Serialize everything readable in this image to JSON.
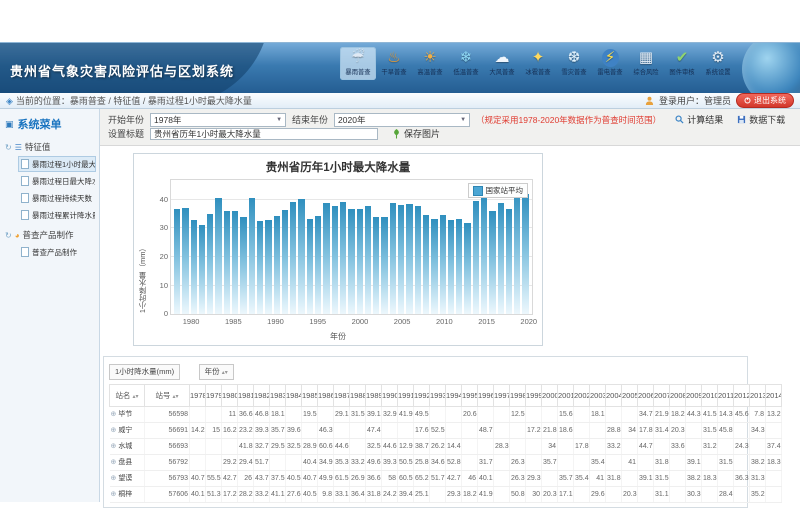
{
  "app": {
    "title": "贵州省气象灾害风险评估与区划系统"
  },
  "toolbar": {
    "items": [
      {
        "name": "rainstorm",
        "icon": "rainstorm-icon",
        "label": "暴雨普查",
        "active": true
      },
      {
        "name": "drought",
        "icon": "drought-icon",
        "label": "干旱普查",
        "active": false
      },
      {
        "name": "high-temp",
        "icon": "high-temp-icon",
        "label": "高温普查",
        "active": false
      },
      {
        "name": "low-temp",
        "icon": "low-temp-icon",
        "label": "低温普查",
        "active": false
      },
      {
        "name": "wind",
        "icon": "wind-icon",
        "label": "大风普查",
        "active": false
      },
      {
        "name": "hail",
        "icon": "hail-icon",
        "label": "冰雹普查",
        "active": false
      },
      {
        "name": "snow",
        "icon": "snow-icon",
        "label": "雪灾普查",
        "active": false
      },
      {
        "name": "lightning",
        "icon": "lightning-icon",
        "label": "雷电普查",
        "active": false
      },
      {
        "name": "composite-risk",
        "icon": "composite-risk-icon",
        "label": "综合风险",
        "active": false
      },
      {
        "name": "map-review",
        "icon": "map-review-icon",
        "label": "图件审核",
        "active": false
      },
      {
        "name": "settings",
        "icon": "settings-icon",
        "label": "系统设置",
        "active": false
      }
    ]
  },
  "userbar": {
    "location": "当前的位置：暴雨普查 / 特征值 / 暴雨过程1小时最大降水量",
    "login": "登录用户：管理员",
    "logout": "退出系统"
  },
  "sidebar": {
    "title": "系统菜单",
    "sections": [
      {
        "label": "特征值",
        "icon": "list-icon",
        "items": [
          {
            "label": "暴雨过程1小时最大降水量",
            "active": true
          },
          {
            "label": "暴雨过程日最大降水量",
            "active": false
          },
          {
            "label": "暴雨过程持续天数",
            "active": false
          },
          {
            "label": "暴雨过程累计降水量",
            "active": false
          }
        ]
      },
      {
        "label": "普查产品制作",
        "icon": "product-icon",
        "items": [
          {
            "label": "普查产品制作",
            "active": false
          }
        ]
      }
    ]
  },
  "filters": {
    "start_label": "开始年份",
    "start_value": "1978年",
    "end_label": "结束年份",
    "end_value": "2020年",
    "note": "（规定采用1978-2020年数据作为普查时间范围）",
    "calc_label": "计算结果",
    "download_label": "数据下载",
    "title_label": "设置标题",
    "title_value": "贵州省历年1小时最大降水量",
    "save_label": "保存图片"
  },
  "chart_data": {
    "type": "bar",
    "title": "贵州省历年1小时最大降水量",
    "legend": [
      "国家站平均"
    ],
    "xlabel": "年份",
    "ylabel": "1小时降水量（mm）",
    "x": [
      1978,
      1979,
      1980,
      1981,
      1982,
      1983,
      1984,
      1985,
      1986,
      1987,
      1988,
      1989,
      1990,
      1991,
      1992,
      1993,
      1994,
      1995,
      1996,
      1997,
      1998,
      1999,
      2000,
      2001,
      2002,
      2003,
      2004,
      2005,
      2006,
      2007,
      2008,
      2009,
      2010,
      2011,
      2012,
      2013,
      2014,
      2015,
      2016,
      2017,
      2018,
      2019,
      2020
    ],
    "values": [
      36.7,
      37.3,
      32.9,
      31.2,
      35.2,
      40.7,
      36.2,
      36.2,
      34.1,
      40.8,
      32.8,
      33,
      34.5,
      36.5,
      39.2,
      40.5,
      33.5,
      34.5,
      38.9,
      37.8,
      39.4,
      36.7,
      36.8,
      37.8,
      33.9,
      33.9,
      38.8,
      38.1,
      38.5,
      38,
      34.6,
      33.5,
      34.9,
      33,
      33.3,
      32,
      39.7,
      41.2,
      36,
      39,
      36.7,
      43,
      42.2
    ],
    "ylim": [
      0,
      47
    ],
    "yticks": [
      0,
      10,
      20,
      30,
      40
    ],
    "xticks": [
      1980,
      1985,
      1990,
      1995,
      2000,
      2005,
      2010,
      2015,
      2020
    ],
    "bar_color": "#3b97c6",
    "grid": true,
    "legend_position": "top-right"
  },
  "table": {
    "measure_pill": "1小时降水量(mm)",
    "dim_pill": "年份",
    "col_station": "站名",
    "col_id": "站号",
    "years": [
      "1978",
      "1979",
      "1980",
      "1981",
      "1982",
      "1983",
      "1984",
      "1985",
      "1986",
      "1987",
      "1988",
      "1989",
      "1990",
      "1991",
      "1992",
      "1993",
      "1994",
      "1995",
      "1996",
      "1997",
      "1998",
      "1999",
      "2000",
      "2001",
      "2002",
      "2003",
      "2004",
      "2005",
      "2006",
      "2007",
      "2008",
      "2009",
      "2010",
      "2011",
      "2012",
      "2013",
      "2014"
    ],
    "rows": [
      {
        "name": "毕节",
        "id": "56598",
        "values": [
          "",
          "",
          "11",
          "36.6",
          "46.8",
          "18.1",
          "",
          "19.5",
          "",
          "29.1",
          "31.5",
          "39.1",
          "32.9",
          "41.9",
          "49.5",
          "",
          "",
          "20.6",
          "",
          "",
          "12.5",
          "",
          "",
          "15.6",
          "",
          "18.1",
          "",
          "",
          "34.7",
          "21.9",
          "18.2",
          "44.3",
          "41.5",
          "14.3",
          "45.6",
          "7.8",
          "13.2"
        ]
      },
      {
        "name": "威宁",
        "id": "56691",
        "values": [
          "14.2",
          "15",
          "16.2",
          "23.2",
          "39.3",
          "35.7",
          "39.6",
          "",
          "46.3",
          "",
          "",
          "47.4",
          "",
          "",
          "17.6",
          "52.5",
          "",
          "",
          "48.7",
          "",
          "",
          "17.2",
          "21.8",
          "18.6",
          "",
          "",
          "28.8",
          "34",
          "17.8",
          "31.4",
          "20.3",
          "",
          "31.5",
          "45.8",
          "",
          "34.3",
          ""
        ]
      },
      {
        "name": "水城",
        "id": "56693",
        "values": [
          "",
          "",
          "",
          "41.8",
          "32.7",
          "29.5",
          "32.5",
          "28.9",
          "60.6",
          "44.6",
          "",
          "32.5",
          "44.6",
          "12.9",
          "38.7",
          "26.2",
          "14.4",
          "",
          "",
          "28.3",
          "",
          "",
          "34",
          "",
          "17.8",
          "",
          "33.2",
          "",
          "44.7",
          "",
          "33.6",
          "",
          "31.2",
          "",
          "24.3",
          "",
          "37.4"
        ]
      },
      {
        "name": "盘县",
        "id": "56792",
        "values": [
          "",
          "",
          "29.2",
          "29.4",
          "51.7",
          "",
          "",
          "40.4",
          "34.9",
          "35.3",
          "33.2",
          "49.6",
          "39.3",
          "50.5",
          "25.8",
          "34.6",
          "52.8",
          "",
          "31.7",
          "",
          "26.3",
          "",
          "35.7",
          "",
          "",
          "35.4",
          "",
          "41",
          "",
          "31.8",
          "",
          "39.1",
          "",
          "31.5",
          "",
          "38.2",
          "18.3"
        ]
      },
      {
        "name": "望谟",
        "id": "56793",
        "values": [
          "40.7",
          "55.5",
          "42.7",
          "26",
          "43.7",
          "37.5",
          "40.5",
          "40.7",
          "49.9",
          "61.5",
          "26.9",
          "36.6",
          "58",
          "60.5",
          "65.2",
          "51.7",
          "42.7",
          "46",
          "40.1",
          "",
          "26.3",
          "29.3",
          "",
          "35.7",
          "35.4",
          "41",
          "31.8",
          "",
          "39.1",
          "31.5",
          "",
          "38.2",
          "18.3",
          "",
          "36.3",
          "31.3",
          ""
        ]
      },
      {
        "name": "桐梓",
        "id": "57606",
        "values": [
          "40.1",
          "51.3",
          "17.2",
          "28.2",
          "33.2",
          "41.1",
          "27.6",
          "40.5",
          "9.8",
          "33.1",
          "36.4",
          "31.8",
          "24.2",
          "39.4",
          "25.1",
          "",
          "29.3",
          "18.2",
          "41.9",
          "",
          "50.8",
          "30",
          "20.3",
          "17.1",
          "",
          "29.6",
          "",
          "20.3",
          "",
          "31.1",
          "",
          "30.3",
          "",
          "28.4",
          "",
          "35.2",
          ""
        ]
      }
    ]
  }
}
